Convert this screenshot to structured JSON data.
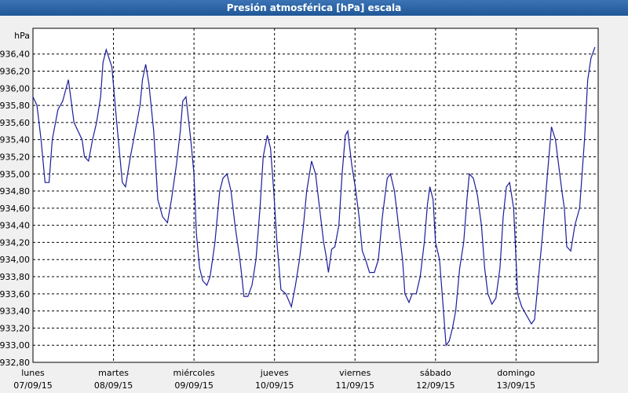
{
  "chart_data": {
    "type": "line",
    "title": "Presión atmosférica [hPa] escala",
    "y_label": "hPa",
    "xlim": [
      0,
      7.02
    ],
    "ylim": [
      932.8,
      936.7
    ],
    "grid": true,
    "xticks": [
      {
        "value": 0,
        "label": "lunes"
      },
      {
        "value": 1,
        "label": "martes"
      },
      {
        "value": 2,
        "label": "miércoles"
      },
      {
        "value": 3,
        "label": "jueves"
      },
      {
        "value": 4,
        "label": "viernes"
      },
      {
        "value": 5,
        "label": "sábado"
      },
      {
        "value": 6,
        "label": "domingo"
      }
    ],
    "xtick_dates": [
      "07/09/15",
      "08/09/15",
      "09/09/15",
      "10/09/15",
      "11/09/15",
      "12/09/15",
      "13/09/15"
    ],
    "yticks": [
      {
        "value": 932.8,
        "label": "932,80"
      },
      {
        "value": 933.0,
        "label": "933,00"
      },
      {
        "value": 933.2,
        "label": "933,20"
      },
      {
        "value": 933.4,
        "label": "933,40"
      },
      {
        "value": 933.6,
        "label": "933,60"
      },
      {
        "value": 933.8,
        "label": "933,80"
      },
      {
        "value": 934.0,
        "label": "934,00"
      },
      {
        "value": 934.2,
        "label": "934,20"
      },
      {
        "value": 934.4,
        "label": "934,40"
      },
      {
        "value": 934.6,
        "label": "934,60"
      },
      {
        "value": 934.8,
        "label": "934,80"
      },
      {
        "value": 935.0,
        "label": "935,00"
      },
      {
        "value": 935.2,
        "label": "935,20"
      },
      {
        "value": 935.4,
        "label": "935,40"
      },
      {
        "value": 935.6,
        "label": "935,60"
      },
      {
        "value": 935.8,
        "label": "935,80"
      },
      {
        "value": 936.0,
        "label": "936,00"
      },
      {
        "value": 936.2,
        "label": "936,20"
      },
      {
        "value": 936.4,
        "label": "936,40"
      }
    ],
    "series": [
      {
        "color": "#1c1c9c",
        "x": [
          0,
          0.05,
          0.1,
          0.15,
          0.2,
          0.24,
          0.31,
          0.37,
          0.44,
          0.51,
          0.56,
          0.61,
          0.64,
          0.69,
          0.74,
          0.79,
          0.84,
          0.87,
          0.91,
          0.98,
          1.04,
          1.09,
          1.11,
          1.15,
          1.21,
          1.27,
          1.33,
          1.36,
          1.4,
          1.44,
          1.5,
          1.55,
          1.61,
          1.67,
          1.72,
          1.78,
          1.83,
          1.86,
          1.9,
          1.96,
          2.0,
          2.03,
          2.07,
          2.11,
          2.16,
          2.2,
          2.26,
          2.32,
          2.36,
          2.41,
          2.46,
          2.51,
          2.57,
          2.6,
          2.62,
          2.67,
          2.72,
          2.77,
          2.82,
          2.86,
          2.91,
          2.95,
          2.99,
          3.03,
          3.08,
          3.14,
          3.21,
          3.26,
          3.31,
          3.36,
          3.4,
          3.46,
          3.51,
          3.56,
          3.61,
          3.64,
          3.67,
          3.71,
          3.75,
          3.8,
          3.84,
          3.88,
          3.91,
          3.96,
          4.01,
          4.05,
          4.09,
          4.13,
          4.18,
          4.24,
          4.29,
          4.34,
          4.4,
          4.44,
          4.49,
          4.54,
          4.59,
          4.62,
          4.67,
          4.71,
          4.76,
          4.81,
          4.86,
          4.9,
          4.93,
          4.97,
          5.0,
          5.05,
          5.09,
          5.13,
          5.17,
          5.21,
          5.25,
          5.3,
          5.35,
          5.39,
          5.42,
          5.47,
          5.52,
          5.57,
          5.61,
          5.65,
          5.7,
          5.75,
          5.8,
          5.84,
          5.88,
          5.92,
          5.97,
          6.02,
          6.07,
          6.13,
          6.19,
          6.23,
          6.28,
          6.33,
          6.39,
          6.44,
          6.49,
          6.53,
          6.57,
          6.6,
          6.63,
          6.68,
          6.73,
          6.79,
          6.85,
          6.89,
          6.93,
          6.98
        ],
        "values": [
          935.9,
          935.8,
          935.4,
          934.9,
          934.9,
          935.4,
          935.75,
          935.85,
          936.1,
          935.6,
          935.5,
          935.4,
          935.2,
          935.15,
          935.4,
          935.6,
          935.9,
          936.3,
          936.45,
          936.25,
          935.6,
          935.1,
          934.9,
          934.85,
          935.2,
          935.5,
          935.8,
          936.1,
          936.28,
          936.05,
          935.5,
          934.7,
          934.5,
          934.43,
          934.7,
          935.1,
          935.5,
          935.85,
          935.9,
          935.4,
          935.0,
          934.3,
          933.9,
          933.75,
          933.7,
          933.8,
          934.2,
          934.8,
          934.95,
          935.0,
          934.8,
          934.4,
          934.0,
          933.75,
          933.57,
          933.57,
          933.7,
          934.0,
          934.6,
          935.2,
          935.45,
          935.3,
          934.8,
          934.2,
          933.65,
          933.6,
          933.45,
          933.7,
          934.0,
          934.4,
          934.8,
          935.15,
          935.0,
          934.6,
          934.2,
          934.05,
          933.85,
          934.12,
          934.15,
          934.4,
          935.0,
          935.45,
          935.5,
          935.1,
          934.8,
          934.5,
          934.1,
          934.0,
          933.85,
          933.85,
          934.0,
          934.5,
          934.95,
          935.0,
          934.8,
          934.4,
          934.0,
          933.6,
          933.5,
          933.6,
          933.6,
          933.8,
          934.2,
          934.65,
          934.85,
          934.7,
          934.2,
          934.0,
          933.5,
          933.0,
          933.05,
          933.2,
          933.4,
          933.9,
          934.2,
          934.7,
          935.0,
          934.95,
          934.75,
          934.4,
          933.9,
          933.6,
          933.48,
          933.55,
          933.9,
          934.5,
          934.85,
          934.9,
          934.6,
          933.6,
          933.45,
          933.35,
          933.25,
          933.3,
          933.8,
          934.3,
          935.0,
          935.55,
          935.4,
          935.1,
          934.8,
          934.6,
          934.15,
          934.1,
          934.4,
          934.6,
          935.4,
          936.1,
          936.35,
          936.48
        ]
      }
    ]
  }
}
